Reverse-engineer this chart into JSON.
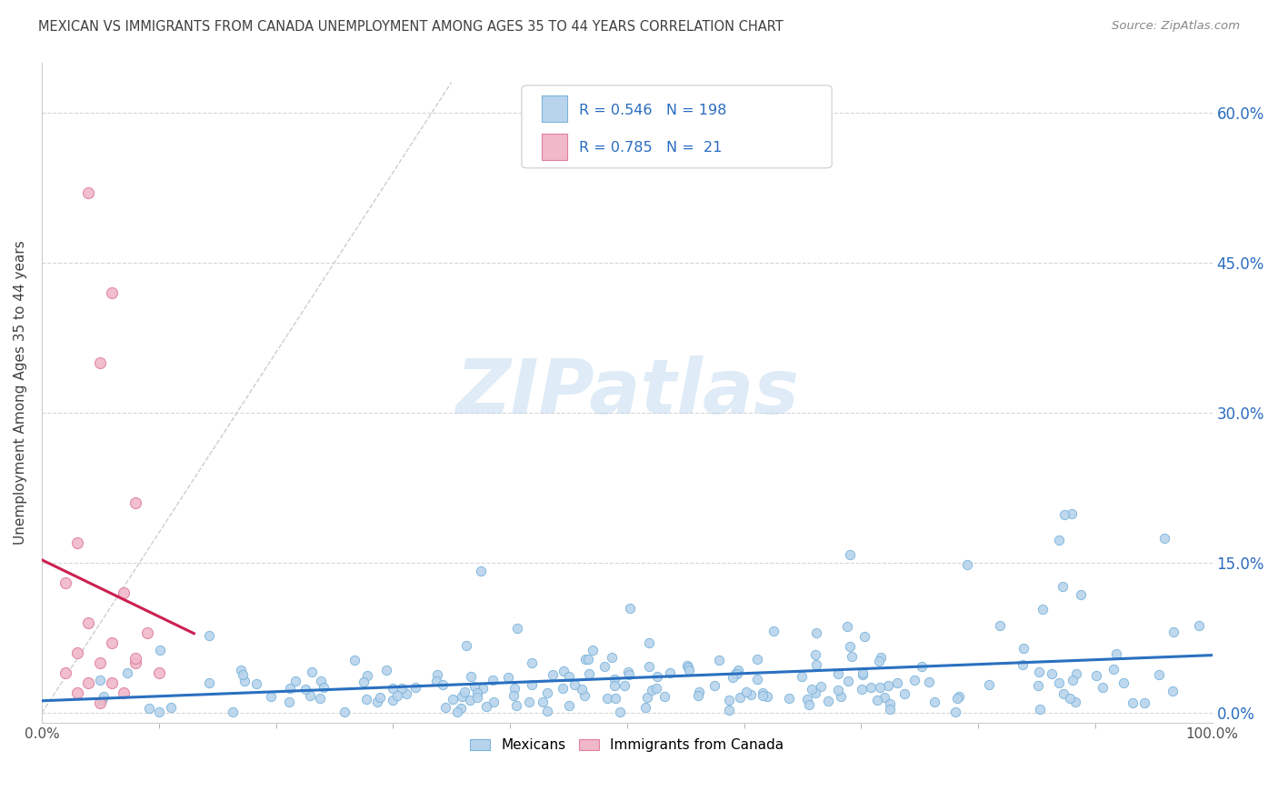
{
  "title": "MEXICAN VS IMMIGRANTS FROM CANADA UNEMPLOYMENT AMONG AGES 35 TO 44 YEARS CORRELATION CHART",
  "source": "Source: ZipAtlas.com",
  "ylabel": "Unemployment Among Ages 35 to 44 years",
  "xlim": [
    0.0,
    1.0
  ],
  "ylim": [
    -0.01,
    0.65
  ],
  "yticks": [
    0.0,
    0.15,
    0.3,
    0.45,
    0.6
  ],
  "ytick_labels": [
    "0.0%",
    "15.0%",
    "30.0%",
    "45.0%",
    "60.0%"
  ],
  "xtick_labels": [
    "0.0%",
    "100.0%"
  ],
  "blue_edge": "#7ab3d9",
  "blue_fill": "#b8d4ed",
  "pink_edge": "#e080a0",
  "pink_fill": "#f0b8c8",
  "trend_blue": "#2a70c0",
  "trend_pink": "#cc2050",
  "trend_dashed_color": "#c8c8c8",
  "R_blue": 0.546,
  "N_blue": 198,
  "R_pink": 0.785,
  "N_pink": 21,
  "background_color": "#ffffff",
  "grid_color": "#cccccc",
  "legend_label_blue": "Mexicans",
  "legend_label_pink": "Immigrants from Canada",
  "title_color": "#404040",
  "source_color": "#888888",
  "stat_color": "#2a6cc0",
  "watermark_color": "#b8d4ed"
}
